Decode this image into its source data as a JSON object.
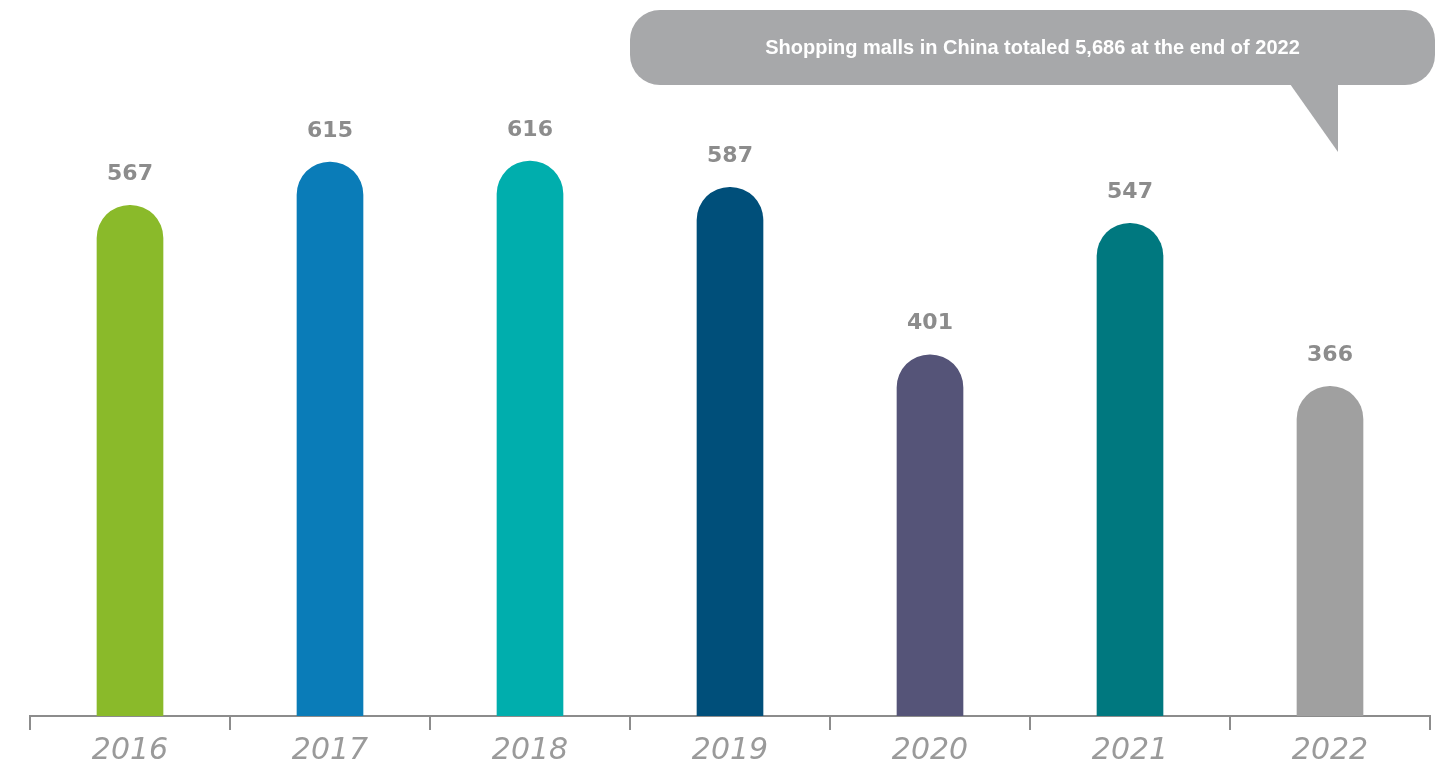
{
  "chart_data": {
    "type": "bar",
    "categories": [
      "2016",
      "2017",
      "2018",
      "2019",
      "2020",
      "2021",
      "2022"
    ],
    "values": [
      567,
      615,
      616,
      587,
      401,
      547,
      366
    ],
    "colors": [
      "#8aba2a",
      "#0a7cb8",
      "#00aead",
      "#004f7a",
      "#555478",
      "#00787f",
      "#a0a0a0"
    ],
    "data_labels": true,
    "annotations": [
      "Shopping malls in China totaled 5,686 at the end of 2022"
    ]
  }
}
